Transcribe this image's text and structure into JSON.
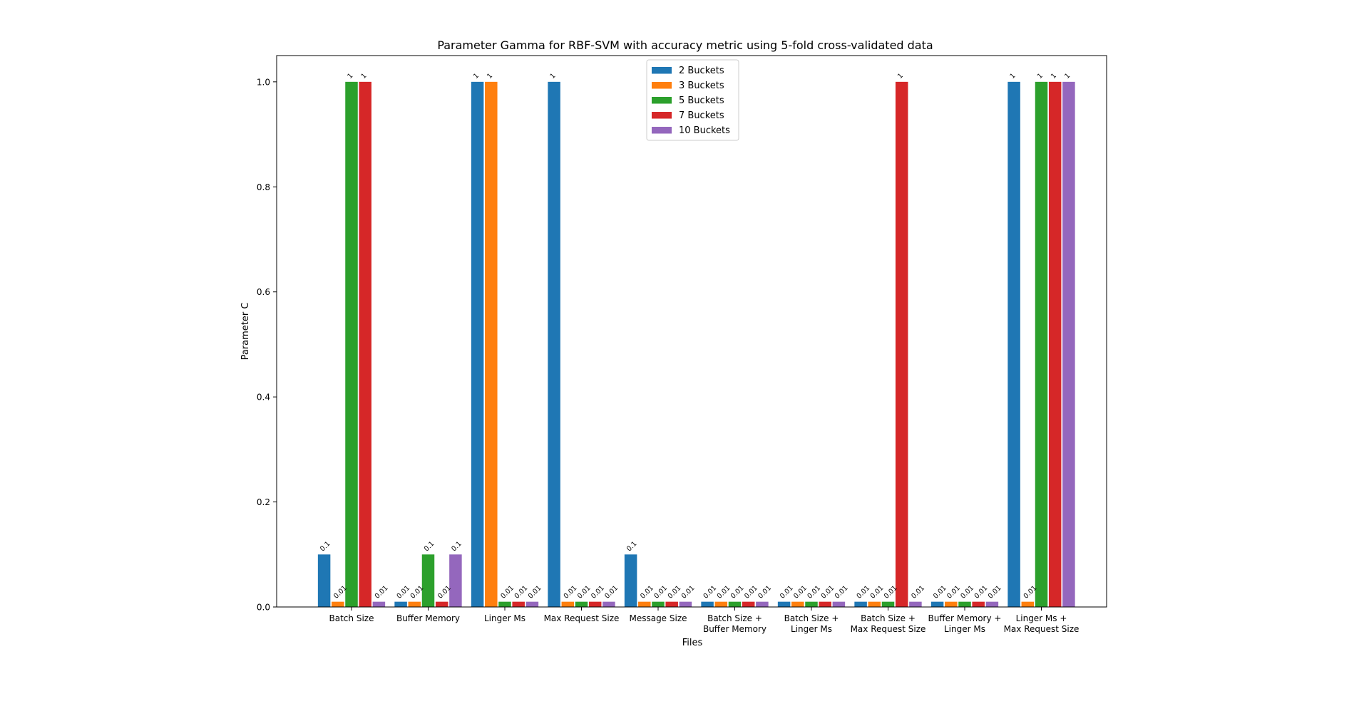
{
  "chart_data": {
    "type": "bar",
    "title": "Parameter Gamma for RBF-SVM with accuracy metric using 5-fold cross-validated data",
    "xlabel": "Files",
    "ylabel": "Parameter C",
    "ylim": [
      0,
      1.05
    ],
    "yticks": [
      "0.0",
      "0.2",
      "0.4",
      "0.6",
      "0.8",
      "1.0"
    ],
    "categories": [
      [
        "Batch Size"
      ],
      [
        "Buffer Memory"
      ],
      [
        "Linger Ms"
      ],
      [
        "Max Request Size"
      ],
      [
        "Message Size"
      ],
      [
        "Batch Size +",
        "Buffer Memory"
      ],
      [
        "Batch Size +",
        "Linger Ms"
      ],
      [
        "Batch Size +",
        "Max Request Size"
      ],
      [
        "Buffer Memory +",
        "Linger Ms"
      ],
      [
        "Linger Ms +",
        "Max Request Size"
      ]
    ],
    "series": [
      {
        "name": "2 Buckets",
        "color": "#1f77b4",
        "values": [
          0.1,
          0.01,
          1.0,
          1.0,
          0.1,
          0.01,
          0.01,
          0.01,
          0.01,
          1.0
        ]
      },
      {
        "name": "3 Buckets",
        "color": "#ff7f0e",
        "values": [
          0.01,
          0.01,
          1.0,
          0.01,
          0.01,
          0.01,
          0.01,
          0.01,
          0.01,
          0.01
        ]
      },
      {
        "name": "5 Buckets",
        "color": "#2ca02c",
        "values": [
          1.0,
          0.1,
          0.01,
          0.01,
          0.01,
          0.01,
          0.01,
          0.01,
          0.01,
          1.0
        ]
      },
      {
        "name": "7 Buckets",
        "color": "#d62728",
        "values": [
          1.0,
          0.01,
          0.01,
          0.01,
          0.01,
          0.01,
          0.01,
          1.0,
          0.01,
          1.0
        ]
      },
      {
        "name": "10 Buckets",
        "color": "#9467bd",
        "values": [
          0.01,
          0.1,
          0.01,
          0.01,
          0.01,
          0.01,
          0.01,
          0.01,
          0.01,
          1.0
        ]
      }
    ],
    "grid": false,
    "legend": "top-center"
  }
}
